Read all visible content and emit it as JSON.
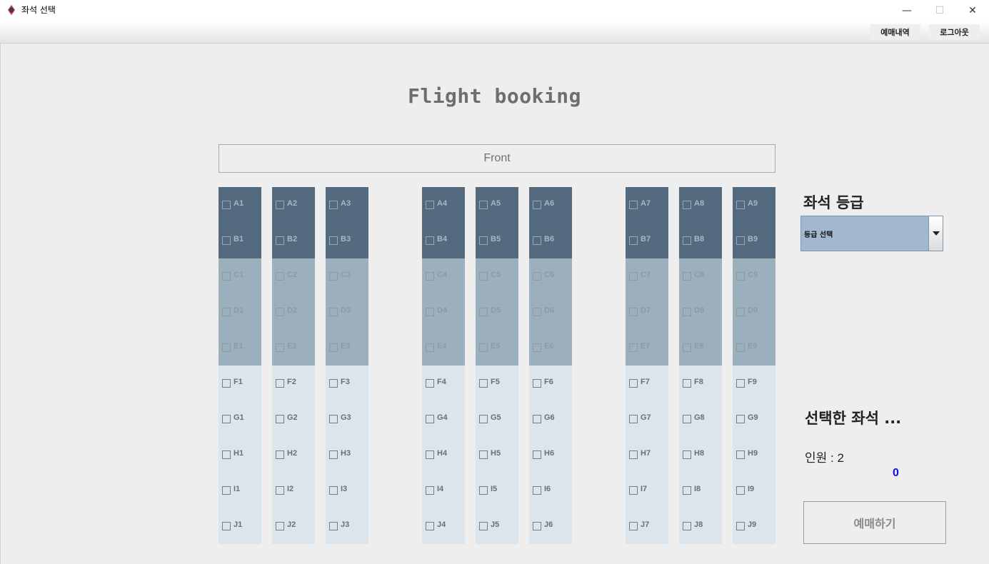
{
  "window": {
    "title": "좌석 선택",
    "minimize": "—",
    "maximize": "☐",
    "close": "✕"
  },
  "menu": {
    "history": "예매내역",
    "logout": "로그아웃"
  },
  "page_title": "Flight booking",
  "front_label": "Front",
  "seat_classes": {
    "first_rows": [
      "A",
      "B"
    ],
    "business_rows": [
      "C",
      "D",
      "E"
    ],
    "economy_rows": [
      "F",
      "G",
      "H",
      "I",
      "J"
    ]
  },
  "seat_columns": [
    1,
    2,
    3,
    4,
    5,
    6,
    7,
    8,
    9
  ],
  "grade": {
    "title": "좌석 등급",
    "selected": "등급 선택"
  },
  "selected_seats": {
    "title": "선택한 좌석 ...",
    "people_label": "인원 : 2",
    "count": "0"
  },
  "book_button": "예매하기"
}
